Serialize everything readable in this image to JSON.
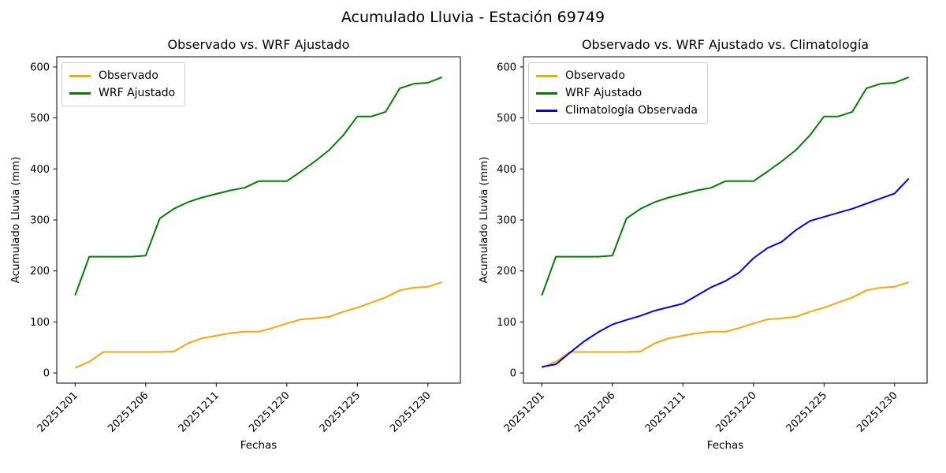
{
  "figure": {
    "suptitle": "Acumulado Lluvia - Estación 69749"
  },
  "chart_data": [
    {
      "type": "line",
      "title": "Observado vs. WRF Ajustado",
      "xlabel": "Fechas",
      "ylabel": "Acumulado Lluvia (mm)",
      "x_tick_labels": [
        "20251201",
        "20251206",
        "20251211",
        "20251220",
        "20251225",
        "20251230"
      ],
      "x_tick_positions": [
        0,
        5,
        10,
        15,
        20,
        25
      ],
      "n_points": 27,
      "ylim": [
        0,
        600
      ],
      "yticks": [
        0,
        100,
        200,
        300,
        400,
        500,
        600
      ],
      "grid": false,
      "legend_position": "upper left",
      "series": [
        {
          "name": "Observado",
          "color": "#FFA500",
          "values": [
            10,
            22,
            41,
            41,
            41,
            41,
            41,
            42,
            58,
            68,
            73,
            78,
            81,
            81,
            88,
            97,
            105,
            107,
            110,
            120,
            128,
            138,
            148,
            162,
            167,
            169,
            178
          ]
        },
        {
          "name": "WRF Ajustado",
          "color": "#008000",
          "values": [
            152,
            228,
            228,
            228,
            228,
            230,
            303,
            322,
            335,
            344,
            351,
            358,
            363,
            376,
            376,
            376,
            395,
            415,
            437,
            466,
            503,
            503,
            512,
            558,
            567,
            569,
            580
          ]
        }
      ]
    },
    {
      "type": "line",
      "title": "Observado vs. WRF Ajustado vs. Climatología",
      "xlabel": "Fechas",
      "ylabel": "Acumulado Lluvia (mm)",
      "x_tick_labels": [
        "20251201",
        "20251206",
        "20251211",
        "20251220",
        "20251225",
        "20251230"
      ],
      "x_tick_positions": [
        0,
        5,
        10,
        15,
        20,
        25
      ],
      "n_points": 27,
      "ylim": [
        0,
        600
      ],
      "yticks": [
        0,
        100,
        200,
        300,
        400,
        500,
        600
      ],
      "grid": false,
      "legend_position": "upper left",
      "series": [
        {
          "name": "Observado",
          "color": "#FFA500",
          "values": [
            10,
            22,
            41,
            41,
            41,
            41,
            41,
            42,
            58,
            68,
            73,
            78,
            81,
            81,
            88,
            97,
            105,
            107,
            110,
            120,
            128,
            138,
            148,
            162,
            167,
            169,
            178
          ]
        },
        {
          "name": "WRF Ajustado",
          "color": "#008000",
          "values": [
            152,
            228,
            228,
            228,
            228,
            230,
            303,
            322,
            335,
            344,
            351,
            358,
            363,
            376,
            376,
            376,
            395,
            415,
            437,
            466,
            503,
            503,
            512,
            558,
            567,
            569,
            580
          ]
        },
        {
          "name": "Climatología Observada",
          "color": "#0000FF",
          "values": [
            12,
            17,
            40,
            62,
            80,
            95,
            104,
            112,
            122,
            129,
            136,
            152,
            168,
            180,
            197,
            225,
            245,
            257,
            280,
            298,
            306,
            314,
            322,
            332,
            342,
            352,
            381
          ]
        }
      ]
    }
  ]
}
